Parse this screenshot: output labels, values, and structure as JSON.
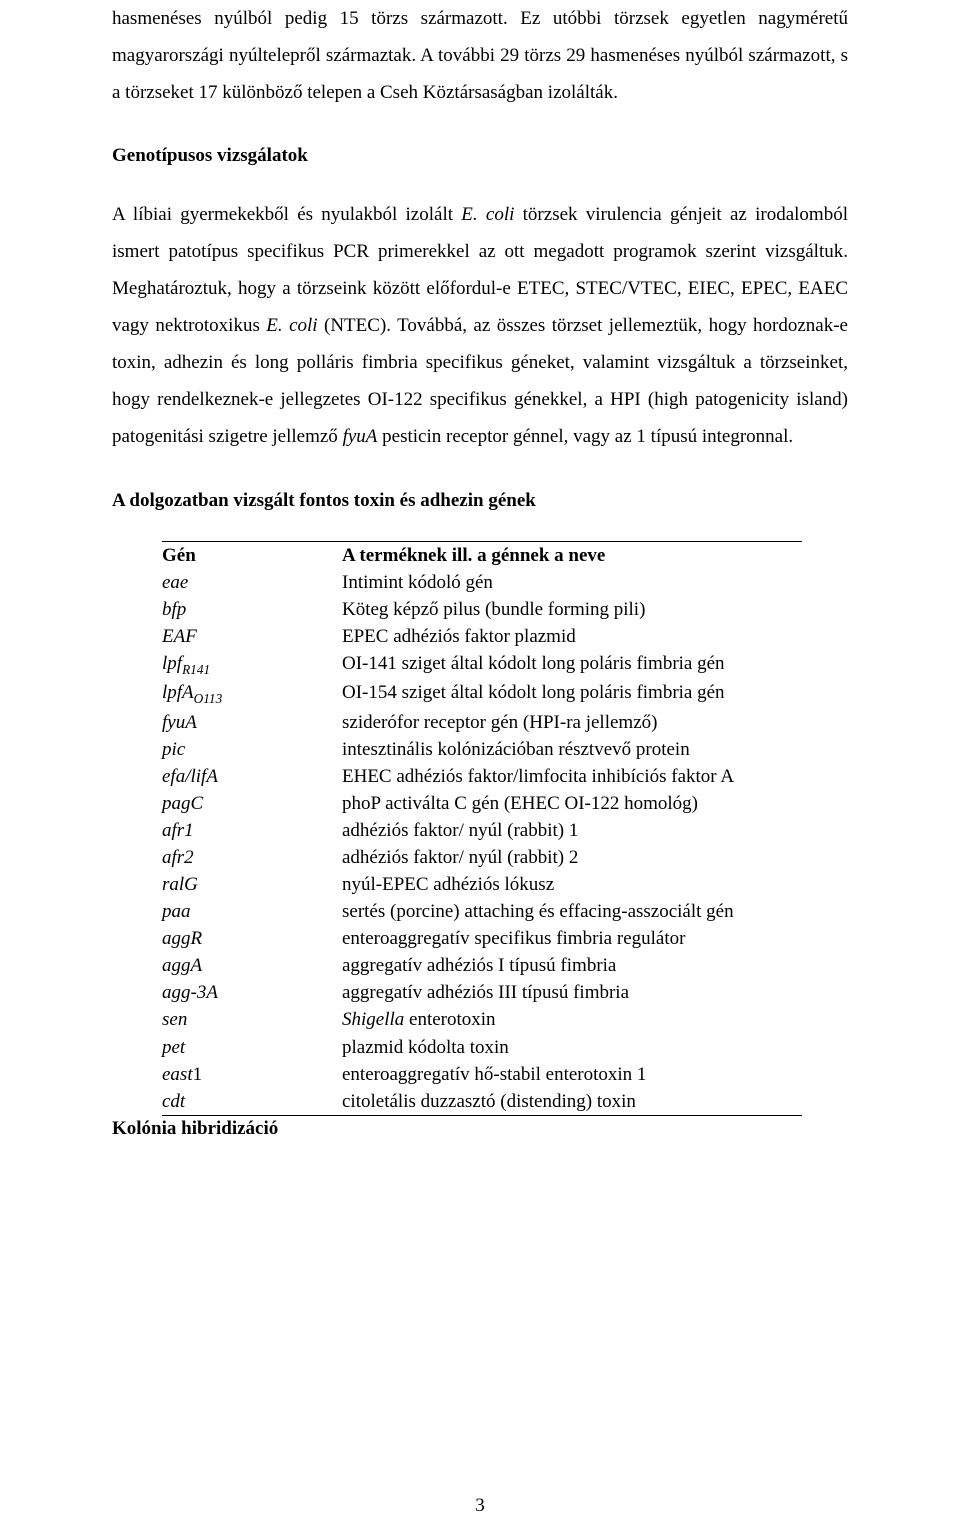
{
  "paragraphs": {
    "p1": "hasmenéses nyúlból pedig 15 törzs származott. Ez utóbbi törzsek egyetlen nagyméretű magyarországi nyúltelepről származtak. A további 29 törzs 29 hasmenéses nyúlból származott, s a törzseket 17 különböző telepen a Cseh Köztársaságban izolálták.",
    "h2": "Genotípusos vizsgálatok",
    "p2_a": "A líbiai gyermekekből és nyulakból izolált ",
    "p2_b": "E. coli",
    "p2_c": " törzsek virulencia génjeit az irodalomból ismert patotípus specifikus PCR primerekkel az ott megadott programok szerint vizsgáltuk. Meghatároztuk, hogy a törzseink között előfordul-e ETEC, STEC/VTEC, EIEC, EPEC, EAEC vagy nektrotoxikus ",
    "p2_d": "E. coli",
    "p2_e": " (NTEC). Továbbá, az összes törzset jellemeztük, hogy hordoznak-e toxin, adhezin és long polláris fimbria specifikus géneket, valamint vizsgáltuk a törzseinket, hogy rendelkeznek-e jellegzetes OI-122 specifikus génekkel, a HPI (high patogenicity island) patogenitási szigetre jellemző ",
    "p2_f": "fyuA",
    "p2_g": " pesticin receptor génnel, vagy az 1 típusú integronnal.",
    "h3": "A dolgozatban vizsgált fontos toxin és adhezin gének",
    "post_table": "Kolónia hibridizáció"
  },
  "table": {
    "header": {
      "col1": "Gén",
      "col2": "A terméknek ill. a génnek a neve"
    },
    "rows": [
      {
        "gene_html": "<span class=\"gene-ital\">eae</span>",
        "desc": "Intimint kódoló gén"
      },
      {
        "gene_html": "<span class=\"gene-ital\">bfp</span>",
        "desc": "Köteg képző pilus (bundle forming pili)"
      },
      {
        "gene_html": "<span class=\"gene-ital\">EAF</span>",
        "desc": "EPEC adhéziós faktor plazmid"
      },
      {
        "gene_html": "<span class=\"gene-ital\">lpf</span><span class=\"gene-sub\">R141</span>",
        "desc": "OI-141 sziget által kódolt long poláris fimbria gén"
      },
      {
        "gene_html": "<span class=\"gene-ital\">lpfA</span><span class=\"gene-sub\">O113</span>",
        "desc": "OI-154 sziget által kódolt long poláris fimbria gén"
      },
      {
        "gene_html": "<span class=\"gene-ital\">fyuA</span>",
        "desc": "sziderófor receptor gén (HPI-ra jellemző)"
      },
      {
        "gene_html": "<span class=\"gene-ital\">pic</span>",
        "desc_justify": "intesztinális kolónizációban résztvevő protein"
      },
      {
        "gene_html": "<span class=\"gene-ital\">efa/lifA</span>",
        "desc": "EHEC adhéziós faktor/limfocita inhibíciós faktor A"
      },
      {
        "gene_html": "<span class=\"gene-ital\">pagC</span>",
        "desc": "phoP activálta C gén (EHEC OI-122 homológ)"
      },
      {
        "gene_html": "<span class=\"gene-ital\">afr1</span>",
        "desc": "adhéziós faktor/ nyúl (rabbit) 1"
      },
      {
        "gene_html": "<span class=\"gene-ital\">afr2</span>",
        "desc": "adhéziós faktor/ nyúl (rabbit) 2"
      },
      {
        "gene_html": "<span class=\"gene-ital\">ralG</span>",
        "desc": "nyúl-EPEC adhéziós lókusz"
      },
      {
        "gene_html": "<span class=\"gene-ital\">paa</span>",
        "desc": "sertés (porcine) attaching és effacing-asszociált gén"
      },
      {
        "gene_html": "<span class=\"gene-ital\">aggR</span>",
        "desc": "enteroaggregatív specifikus fimbria regulátor"
      },
      {
        "gene_html": "<span class=\"gene-ital\">aggA</span>",
        "desc": "aggregatív adhéziós I típusú fimbria"
      },
      {
        "gene_html": "<span class=\"gene-ital\">agg-3A</span>",
        "desc": "aggregatív adhéziós III típusú fimbria"
      },
      {
        "gene_html": "<span class=\"gene-ital\">sen</span>",
        "desc_html": "<span class=\"gene-ital\">Shigella</span> enterotoxin"
      },
      {
        "gene_html": "<span class=\"gene-ital\">pet</span>",
        "desc": "plazmid kódolta toxin"
      },
      {
        "gene_html": "<span class=\"gene-ital\">east</span>1",
        "desc": "enteroaggregatív hő-stabil enterotoxin 1"
      },
      {
        "gene_html": "<span class=\"gene-ital\">cdt</span>",
        "desc": "citoletális duzzasztó (distending) toxin"
      }
    ]
  },
  "page_number": "3"
}
